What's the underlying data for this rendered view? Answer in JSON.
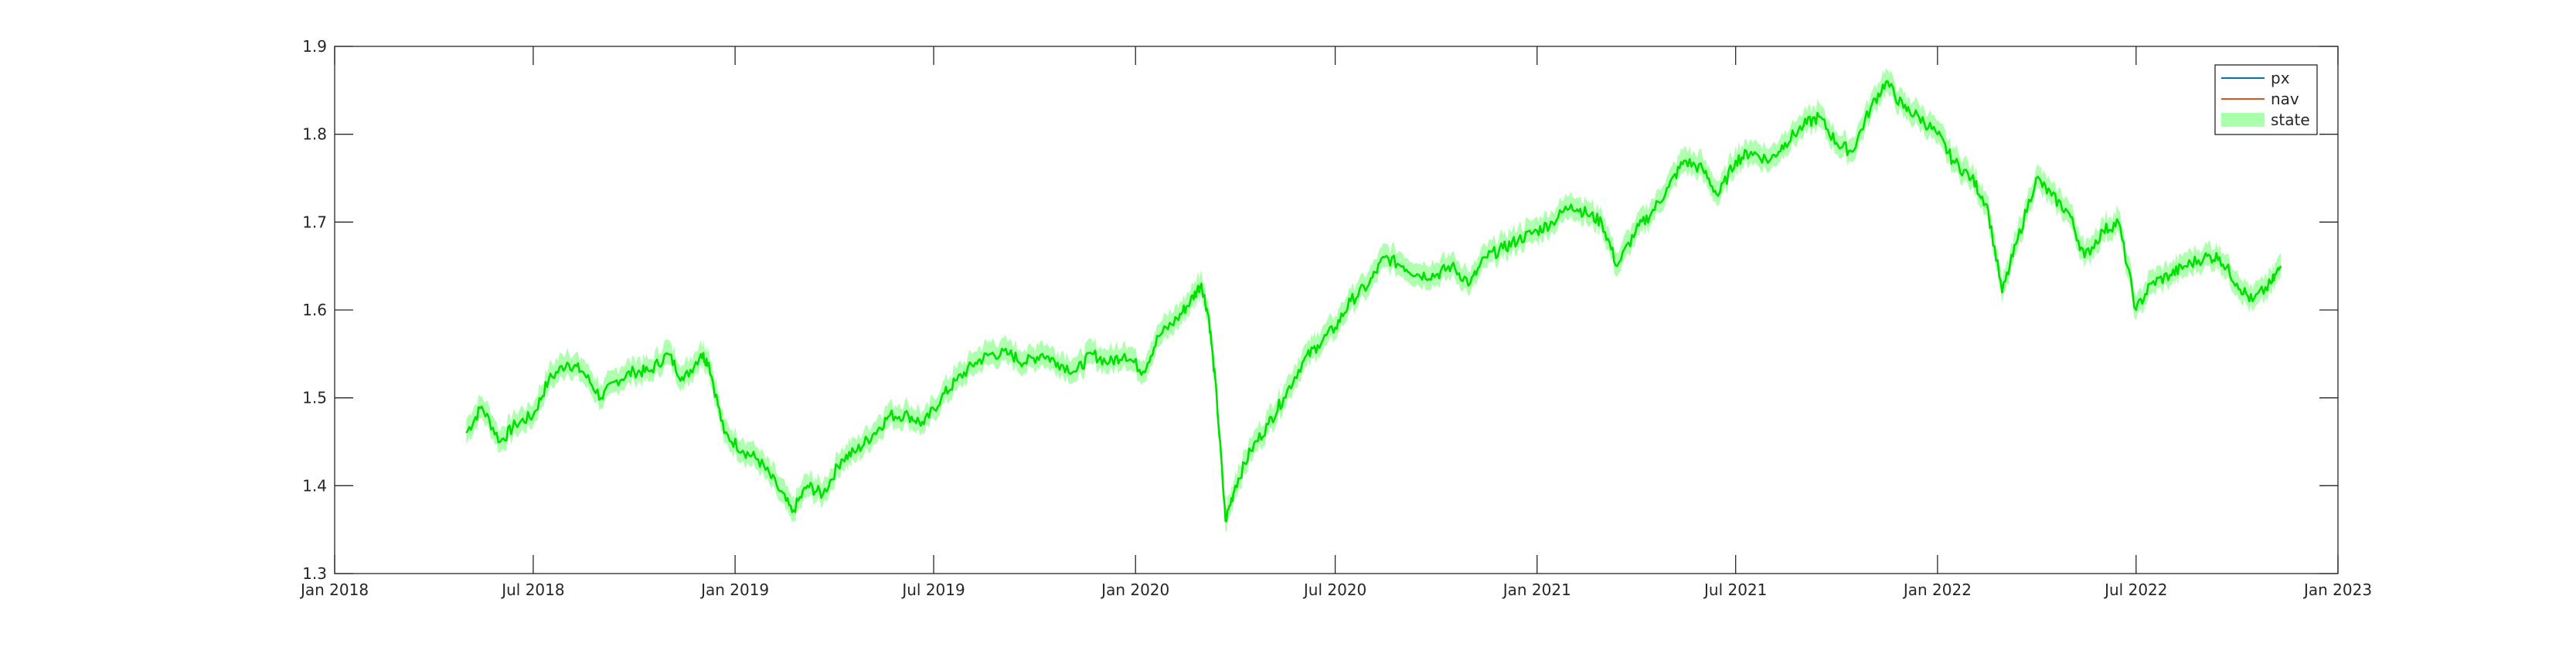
{
  "chart_data": {
    "type": "line",
    "title": "",
    "xlabel": "",
    "ylabel": "",
    "x_ticks": [
      "Jan 2018",
      "Jul 2018",
      "Jan 2019",
      "Jul 2019",
      "Jan 2020",
      "Jul 2020",
      "Jan 2021",
      "Jul 2021",
      "Jan 2022",
      "Jul 2022",
      "Jan 2023"
    ],
    "y_ticks": [
      "1.3",
      "1.4",
      "1.5",
      "1.6",
      "1.7",
      "1.8",
      "1.9"
    ],
    "xlim": [
      "2018-01-01",
      "2023-01-01"
    ],
    "ylim": [
      1.3,
      1.9
    ],
    "grid": false,
    "legend_position": "top-right",
    "legend": [
      {
        "label": "px",
        "color": "#0072BD",
        "kind": "line"
      },
      {
        "label": "nav",
        "color": "#D95319",
        "kind": "line"
      },
      {
        "label": "state",
        "color": "#AAFFAA",
        "kind": "patch"
      }
    ],
    "series": [
      {
        "name": "state",
        "kind": "line",
        "color": "#00E000",
        "band_color": "#AAFFAA",
        "band_halfwidth": 0.012,
        "points": [
          [
            "2018-05-01",
            1.46
          ],
          [
            "2018-05-15",
            1.49
          ],
          [
            "2018-06-01",
            1.45
          ],
          [
            "2018-06-15",
            1.47
          ],
          [
            "2018-07-01",
            1.48
          ],
          [
            "2018-07-15",
            1.52
          ],
          [
            "2018-08-01",
            1.54
          ],
          [
            "2018-08-15",
            1.53
          ],
          [
            "2018-09-01",
            1.5
          ],
          [
            "2018-09-15",
            1.52
          ],
          [
            "2018-10-01",
            1.53
          ],
          [
            "2018-10-15",
            1.53
          ],
          [
            "2018-11-01",
            1.55
          ],
          [
            "2018-11-15",
            1.52
          ],
          [
            "2018-12-01",
            1.55
          ],
          [
            "2018-12-08",
            1.54
          ],
          [
            "2018-12-22",
            1.46
          ],
          [
            "2019-01-08",
            1.44
          ],
          [
            "2019-01-22",
            1.43
          ],
          [
            "2019-02-08",
            1.4
          ],
          [
            "2019-02-22",
            1.37
          ],
          [
            "2019-03-08",
            1.4
          ],
          [
            "2019-03-22",
            1.39
          ],
          [
            "2019-04-08",
            1.43
          ],
          [
            "2019-04-22",
            1.44
          ],
          [
            "2019-05-08",
            1.46
          ],
          [
            "2019-05-22",
            1.48
          ],
          [
            "2019-06-08",
            1.48
          ],
          [
            "2019-06-22",
            1.47
          ],
          [
            "2019-07-08",
            1.5
          ],
          [
            "2019-07-22",
            1.52
          ],
          [
            "2019-08-08",
            1.54
          ],
          [
            "2019-08-22",
            1.55
          ],
          [
            "2019-09-08",
            1.55
          ],
          [
            "2019-09-22",
            1.54
          ],
          [
            "2019-10-08",
            1.55
          ],
          [
            "2019-10-22",
            1.54
          ],
          [
            "2019-11-08",
            1.53
          ],
          [
            "2019-11-22",
            1.55
          ],
          [
            "2019-12-08",
            1.54
          ],
          [
            "2019-12-22",
            1.55
          ],
          [
            "2020-01-08",
            1.53
          ],
          [
            "2020-01-22",
            1.57
          ],
          [
            "2020-02-08",
            1.59
          ],
          [
            "2020-02-20",
            1.61
          ],
          [
            "2020-03-01",
            1.63
          ],
          [
            "2020-03-08",
            1.59
          ],
          [
            "2020-03-15",
            1.5
          ],
          [
            "2020-03-23",
            1.36
          ],
          [
            "2020-04-01",
            1.4
          ],
          [
            "2020-04-15",
            1.44
          ],
          [
            "2020-05-01",
            1.47
          ],
          [
            "2020-05-15",
            1.5
          ],
          [
            "2020-06-01",
            1.54
          ],
          [
            "2020-06-15",
            1.56
          ],
          [
            "2020-07-01",
            1.58
          ],
          [
            "2020-07-15",
            1.61
          ],
          [
            "2020-08-01",
            1.63
          ],
          [
            "2020-08-15",
            1.66
          ],
          [
            "2020-09-01",
            1.65
          ],
          [
            "2020-09-15",
            1.64
          ],
          [
            "2020-10-01",
            1.64
          ],
          [
            "2020-10-15",
            1.65
          ],
          [
            "2020-11-01",
            1.63
          ],
          [
            "2020-11-15",
            1.66
          ],
          [
            "2020-12-01",
            1.67
          ],
          [
            "2020-12-15",
            1.68
          ],
          [
            "2021-01-01",
            1.69
          ],
          [
            "2021-01-15",
            1.7
          ],
          [
            "2021-02-01",
            1.72
          ],
          [
            "2021-02-15",
            1.71
          ],
          [
            "2021-03-01",
            1.7
          ],
          [
            "2021-03-15",
            1.65
          ],
          [
            "2021-04-01",
            1.69
          ],
          [
            "2021-04-15",
            1.71
          ],
          [
            "2021-05-01",
            1.74
          ],
          [
            "2021-05-15",
            1.77
          ],
          [
            "2021-06-01",
            1.76
          ],
          [
            "2021-06-15",
            1.73
          ],
          [
            "2021-07-01",
            1.77
          ],
          [
            "2021-07-15",
            1.78
          ],
          [
            "2021-08-01",
            1.77
          ],
          [
            "2021-08-15",
            1.79
          ],
          [
            "2021-09-01",
            1.81
          ],
          [
            "2021-09-15",
            1.82
          ],
          [
            "2021-10-01",
            1.79
          ],
          [
            "2021-10-15",
            1.78
          ],
          [
            "2021-11-01",
            1.83
          ],
          [
            "2021-11-15",
            1.86
          ],
          [
            "2021-12-01",
            1.83
          ],
          [
            "2021-12-15",
            1.82
          ],
          [
            "2022-01-01",
            1.8
          ],
          [
            "2022-01-15",
            1.77
          ],
          [
            "2022-02-01",
            1.75
          ],
          [
            "2022-02-15",
            1.72
          ],
          [
            "2022-03-01",
            1.62
          ],
          [
            "2022-03-15",
            1.68
          ],
          [
            "2022-04-01",
            1.75
          ],
          [
            "2022-04-15",
            1.73
          ],
          [
            "2022-05-01",
            1.71
          ],
          [
            "2022-05-15",
            1.66
          ],
          [
            "2022-06-01",
            1.69
          ],
          [
            "2022-06-15",
            1.7
          ],
          [
            "2022-07-01",
            1.6
          ],
          [
            "2022-07-15",
            1.63
          ],
          [
            "2022-08-01",
            1.64
          ],
          [
            "2022-08-15",
            1.65
          ],
          [
            "2022-09-01",
            1.66
          ],
          [
            "2022-09-15",
            1.66
          ],
          [
            "2022-10-01",
            1.63
          ],
          [
            "2022-10-15",
            1.61
          ],
          [
            "2022-11-01",
            1.63
          ],
          [
            "2022-11-10",
            1.65
          ]
        ]
      }
    ]
  }
}
